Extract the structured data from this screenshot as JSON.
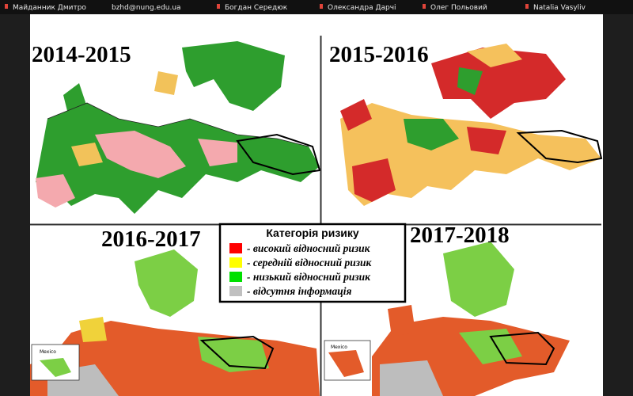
{
  "participants": [
    "Майданник Дмитро",
    "bzhd@nung.edu.ua",
    "Богдан Середюк",
    "Олександра Дарчі",
    "Олег Польовий",
    "Natalia Vasyliv"
  ],
  "slide": {
    "panels": [
      "2014-2015",
      "2015-2016",
      "2016-2017",
      "2017-2018"
    ],
    "legend": {
      "title": "Категорія ризику",
      "items": [
        "- високий відносний ризик",
        "- середній відносний ризик",
        "- низький відносний ризик",
        "- відсутня інформація"
      ]
    },
    "inset_label": "Mexico"
  }
}
